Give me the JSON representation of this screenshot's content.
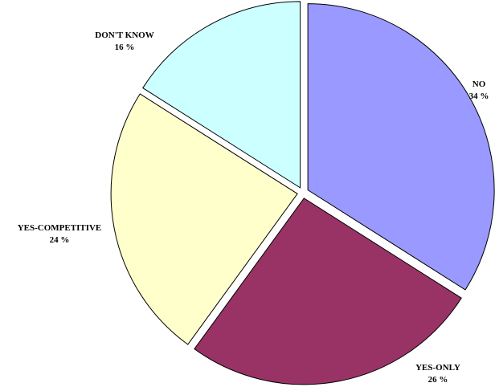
{
  "chart_data": {
    "type": "pie",
    "title": "",
    "slices": [
      {
        "label": "NO",
        "value": 34,
        "value_label": "34 %",
        "color": "#9999ff"
      },
      {
        "label": "YES-ONLY",
        "value": 26,
        "value_label": "26 %",
        "color": "#993366"
      },
      {
        "label": "YES-COMPETITIVE",
        "value": 24,
        "value_label": "24 %",
        "color": "#ffffcc"
      },
      {
        "label": "DON'T KNOW",
        "value": 16,
        "value_label": "16 %",
        "color": "#ccffff"
      }
    ],
    "exploded": true,
    "start_angle": "12 o'clock",
    "direction": "clockwise",
    "legend": "none"
  }
}
